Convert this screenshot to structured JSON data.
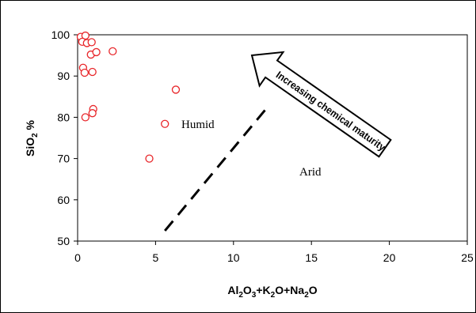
{
  "chart_data": {
    "type": "scatter",
    "title": "",
    "xlabel": "Al2O3+K2O+Na2O",
    "ylabel": "SiO2 %",
    "xlim": [
      0,
      25
    ],
    "ylim": [
      50,
      100
    ],
    "x_ticks": [
      0,
      5,
      10,
      15,
      20,
      25
    ],
    "y_ticks": [
      50,
      60,
      70,
      80,
      90,
      100
    ],
    "grid": false,
    "marker": "open circle",
    "marker_color": "#e8262a",
    "series": [
      {
        "points": [
          {
            "x": 0.2,
            "y": 99.5
          },
          {
            "x": 0.5,
            "y": 99.8
          },
          {
            "x": 0.3,
            "y": 98.3
          },
          {
            "x": 0.6,
            "y": 98.0
          },
          {
            "x": 0.9,
            "y": 98.2
          },
          {
            "x": 0.85,
            "y": 95.2
          },
          {
            "x": 1.2,
            "y": 95.8
          },
          {
            "x": 2.25,
            "y": 96.0
          },
          {
            "x": 0.35,
            "y": 92.0
          },
          {
            "x": 0.45,
            "y": 90.8
          },
          {
            "x": 0.95,
            "y": 91.0
          },
          {
            "x": 1.0,
            "y": 82.0
          },
          {
            "x": 0.95,
            "y": 81.0
          },
          {
            "x": 0.5,
            "y": 80.0
          },
          {
            "x": 6.3,
            "y": 86.7
          },
          {
            "x": 5.6,
            "y": 78.4
          },
          {
            "x": 4.6,
            "y": 70.0
          }
        ]
      }
    ],
    "annotations": {
      "humid_label": "Humid",
      "arid_label": "Arid",
      "arrow_label": "Increasing chemical maturity"
    },
    "dashed_line": {
      "from": [
        5.6,
        52.5
      ],
      "to": [
        12.3,
        83.0
      ]
    }
  }
}
